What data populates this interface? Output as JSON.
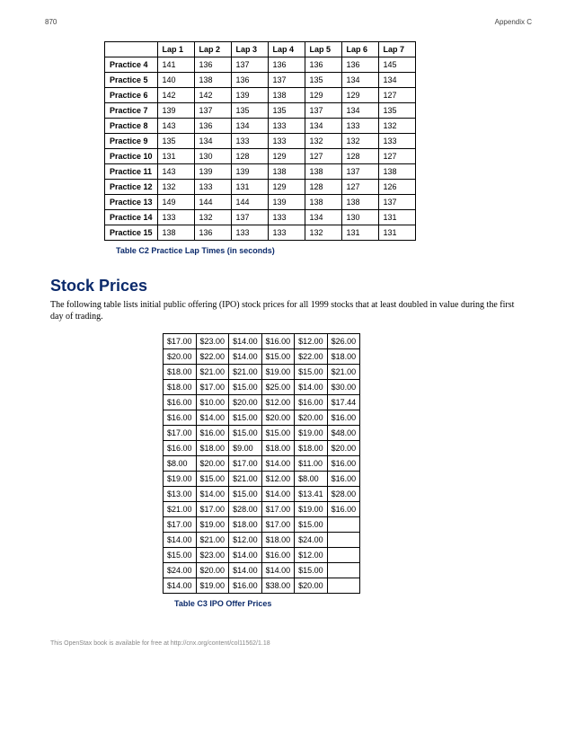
{
  "page": {
    "number": "870",
    "header": "Appendix C"
  },
  "lap_table": {
    "headers": [
      "",
      "Lap 1",
      "Lap 2",
      "Lap 3",
      "Lap 4",
      "Lap 5",
      "Lap 6",
      "Lap 7"
    ],
    "rows": [
      [
        "Practice 4",
        "141",
        "136",
        "137",
        "136",
        "136",
        "136",
        "145"
      ],
      [
        "Practice 5",
        "140",
        "138",
        "136",
        "137",
        "135",
        "134",
        "134"
      ],
      [
        "Practice 6",
        "142",
        "142",
        "139",
        "138",
        "129",
        "129",
        "127"
      ],
      [
        "Practice 7",
        "139",
        "137",
        "135",
        "135",
        "137",
        "134",
        "135"
      ],
      [
        "Practice 8",
        "143",
        "136",
        "134",
        "133",
        "134",
        "133",
        "132"
      ],
      [
        "Practice 9",
        "135",
        "134",
        "133",
        "133",
        "132",
        "132",
        "133"
      ],
      [
        "Practice 10",
        "131",
        "130",
        "128",
        "129",
        "127",
        "128",
        "127"
      ],
      [
        "Practice 11",
        "143",
        "139",
        "139",
        "138",
        "138",
        "137",
        "138"
      ],
      [
        "Practice 12",
        "132",
        "133",
        "131",
        "129",
        "128",
        "127",
        "126"
      ],
      [
        "Practice 13",
        "149",
        "144",
        "144",
        "139",
        "138",
        "138",
        "137"
      ],
      [
        "Practice 14",
        "133",
        "132",
        "137",
        "133",
        "134",
        "130",
        "131"
      ],
      [
        "Practice 15",
        "138",
        "136",
        "133",
        "133",
        "132",
        "131",
        "131"
      ]
    ],
    "caption": "Table C2 Practice Lap Times (in seconds)",
    "cell_font_size": 9,
    "border_color": "#000000",
    "header_font_weight": "bold"
  },
  "section": {
    "title": "Stock Prices",
    "text": "The following table lists initial public offering (IPO) stock prices for all 1999 stocks that at least doubled in value during the first day of trading.",
    "title_color": "#0b2a6b",
    "title_font_size": 18
  },
  "ipo_table": {
    "rows": [
      [
        "$17.00",
        "$23.00",
        "$14.00",
        "$16.00",
        "$12.00",
        "$26.00"
      ],
      [
        "$20.00",
        "$22.00",
        "$14.00",
        "$15.00",
        "$22.00",
        "$18.00"
      ],
      [
        "$18.00",
        "$21.00",
        "$21.00",
        "$19.00",
        "$15.00",
        "$21.00"
      ],
      [
        "$18.00",
        "$17.00",
        "$15.00",
        "$25.00",
        "$14.00",
        "$30.00"
      ],
      [
        "$16.00",
        "$10.00",
        "$20.00",
        "$12.00",
        "$16.00",
        "$17.44"
      ],
      [
        "$16.00",
        "$14.00",
        "$15.00",
        "$20.00",
        "$20.00",
        "$16.00"
      ],
      [
        "$17.00",
        "$16.00",
        "$15.00",
        "$15.00",
        "$19.00",
        "$48.00"
      ],
      [
        "$16.00",
        "$18.00",
        "$9.00",
        "$18.00",
        "$18.00",
        "$20.00"
      ],
      [
        "$8.00",
        "$20.00",
        "$17.00",
        "$14.00",
        "$11.00",
        "$16.00"
      ],
      [
        "$19.00",
        "$15.00",
        "$21.00",
        "$12.00",
        "$8.00",
        "$16.00"
      ],
      [
        "$13.00",
        "$14.00",
        "$15.00",
        "$14.00",
        "$13.41",
        "$28.00"
      ],
      [
        "$21.00",
        "$17.00",
        "$28.00",
        "$17.00",
        "$19.00",
        "$16.00"
      ],
      [
        "$17.00",
        "$19.00",
        "$18.00",
        "$17.00",
        "$15.00",
        ""
      ],
      [
        "$14.00",
        "$21.00",
        "$12.00",
        "$18.00",
        "$24.00",
        ""
      ],
      [
        "$15.00",
        "$23.00",
        "$14.00",
        "$16.00",
        "$12.00",
        ""
      ],
      [
        "$24.00",
        "$20.00",
        "$14.00",
        "$14.00",
        "$15.00",
        ""
      ],
      [
        "$14.00",
        "$19.00",
        "$16.00",
        "$38.00",
        "$20.00",
        ""
      ]
    ],
    "caption": "Table C3 IPO Offer Prices",
    "cell_font_size": 9,
    "border_color": "#000000"
  },
  "footer": {
    "text": "This OpenStax book is available for free at http://cnx.org/content/col11562/1.18"
  },
  "caption_color": "#0b2a6b"
}
